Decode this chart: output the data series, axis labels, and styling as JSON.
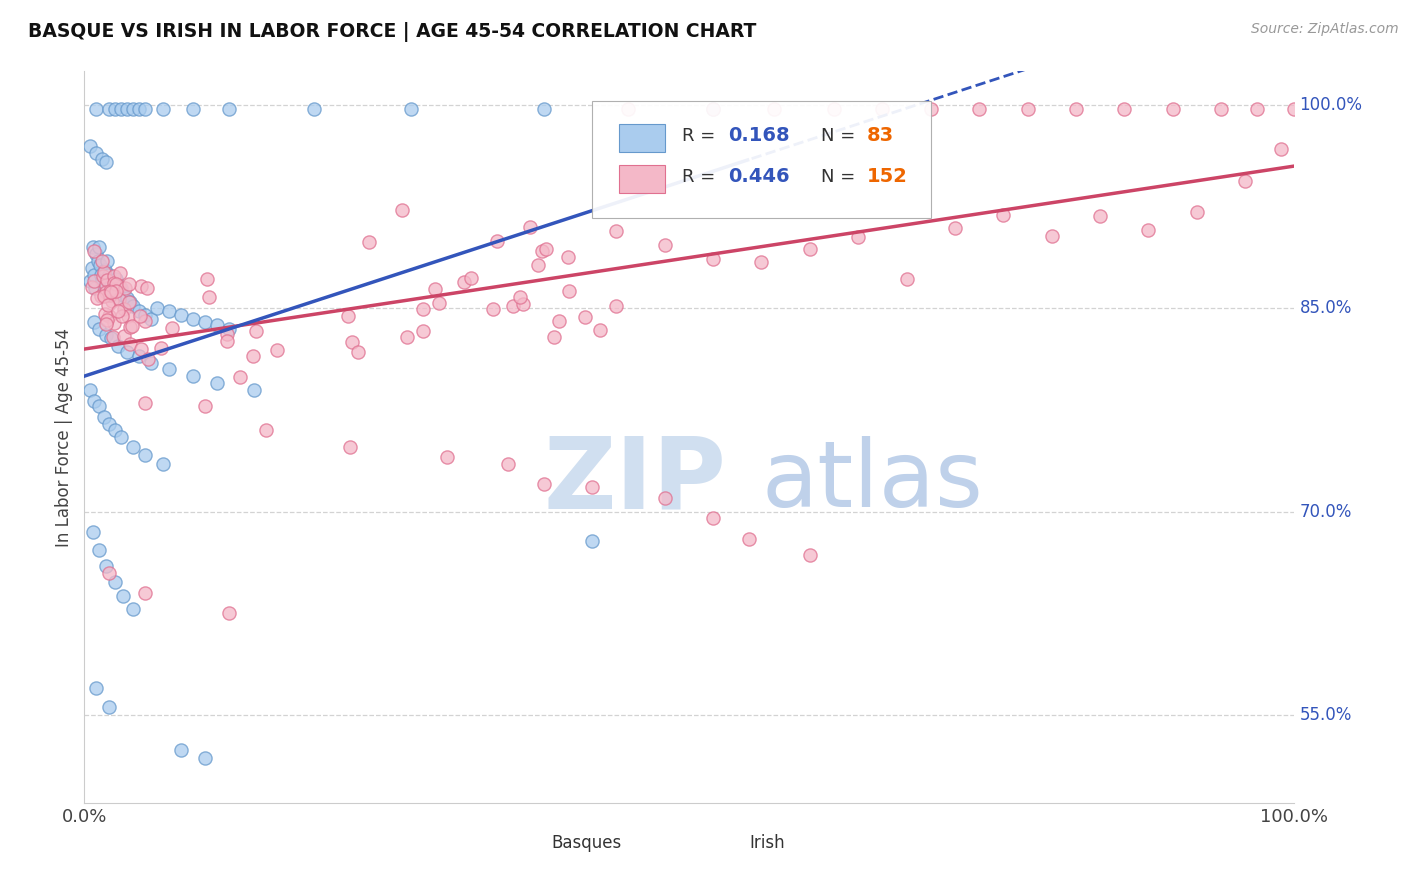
{
  "title": "BASQUE VS IRISH IN LABOR FORCE | AGE 45-54 CORRELATION CHART",
  "source_text": "Source: ZipAtlas.com",
  "ylabel": "In Labor Force | Age 45-54",
  "xlim": [
    0.0,
    1.0
  ],
  "ylim": [
    0.485,
    1.025
  ],
  "ytick_positions": [
    0.55,
    0.7,
    0.85,
    1.0
  ],
  "ytick_labels": [
    "55.0%",
    "70.0%",
    "85.0%",
    "100.0%"
  ],
  "grid_color": "#c8c8c8",
  "background_color": "#ffffff",
  "basque_color": "#aaccee",
  "basque_edge_color": "#6699cc",
  "irish_color": "#f4b8c8",
  "irish_edge_color": "#e07090",
  "basque_r": 0.168,
  "basque_n": 83,
  "irish_r": 0.446,
  "irish_n": 152,
  "legend_r_color": "#3355bb",
  "legend_n_color": "#ee6600",
  "basque_line_color": "#3355bb",
  "irish_line_color": "#cc4466",
  "watermark_zip_color": "#d0dff0",
  "watermark_atlas_color": "#b8cce8"
}
